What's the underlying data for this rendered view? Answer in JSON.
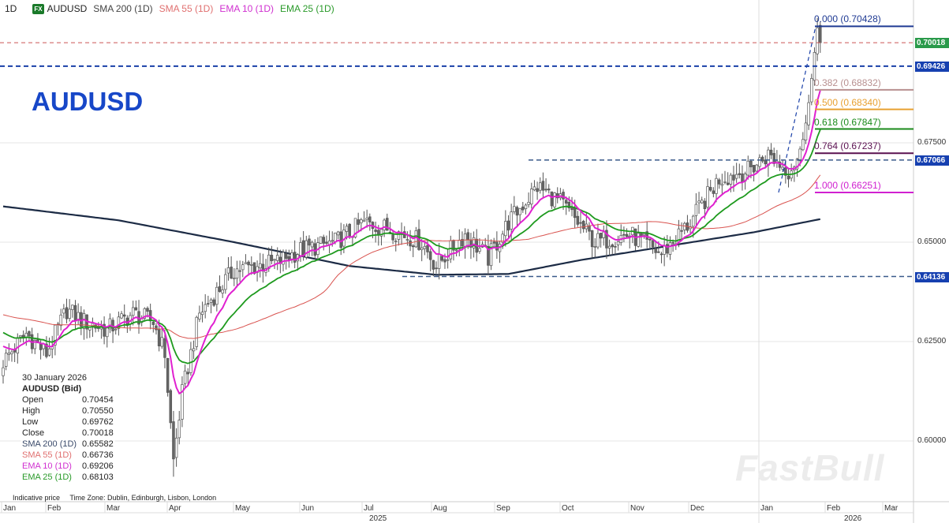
{
  "header": {
    "timeframe": "1D",
    "fx_badge": "FX",
    "symbol": "AUDUSD",
    "ind_sma200": "SMA 200 (1D)",
    "ind_sma55": "SMA 55 (1D)",
    "ind_ema10": "EMA 10 (1D)",
    "ind_ema25": "EMA 25 (1D)"
  },
  "title": "AUDUSD",
  "info": {
    "date": "30 January 2026",
    "instrument": "AUDUSD (Bid)",
    "rows": [
      {
        "k": "Open",
        "v": "0.70454"
      },
      {
        "k": "High",
        "v": "0.70550"
      },
      {
        "k": "Low",
        "v": "0.69762"
      },
      {
        "k": "Close",
        "v": "0.70018"
      },
      {
        "k": "SMA 200 (1D)",
        "v": "0.65582"
      },
      {
        "k": "SMA 55 (1D)",
        "v": "0.66736"
      },
      {
        "k": "EMA 10 (1D)",
        "v": "0.69206"
      },
      {
        "k": "EMA 25 (1D)",
        "v": "0.68103"
      }
    ]
  },
  "footer": {
    "indicative": "Indicative price",
    "timezone": "Time Zone: Dublin, Edinburgh, Lisbon, London"
  },
  "watermark": "FastBull",
  "colors": {
    "sma200": "#1c2b45",
    "sma55": "#d9534f",
    "ema10": "#e020d0",
    "ema25": "#1e9a1e",
    "candle": "#555555"
  },
  "chart_data": {
    "type": "candlestick",
    "title": "AUDUSD",
    "ylim": [
      0.585,
      0.712
    ],
    "y_ticks": [
      "0.60000",
      "0.62500",
      "0.65000",
      "0.67500"
    ],
    "x_ticks": [
      "Jan",
      "Feb",
      "Mar",
      "Apr",
      "May",
      "Jun",
      "Jul",
      "Aug",
      "Sep",
      "Oct",
      "Nov",
      "Dec",
      "Jan",
      "Feb",
      "Mar"
    ],
    "years": [
      "2025",
      "2026"
    ],
    "close_keypoints_day_price": [
      [
        0,
        0.62
      ],
      [
        8,
        0.627
      ],
      [
        15,
        0.622
      ],
      [
        22,
        0.633
      ],
      [
        28,
        0.63
      ],
      [
        36,
        0.628
      ],
      [
        45,
        0.632
      ],
      [
        52,
        0.63
      ],
      [
        56,
        0.622
      ],
      [
        59,
        0.595
      ],
      [
        62,
        0.612
      ],
      [
        68,
        0.632
      ],
      [
        80,
        0.643
      ],
      [
        95,
        0.645
      ],
      [
        103,
        0.648
      ],
      [
        115,
        0.65
      ],
      [
        125,
        0.655
      ],
      [
        135,
        0.653
      ],
      [
        145,
        0.65
      ],
      [
        150,
        0.644
      ],
      [
        160,
        0.652
      ],
      [
        168,
        0.646
      ],
      [
        175,
        0.655
      ],
      [
        185,
        0.664
      ],
      [
        193,
        0.66
      ],
      [
        205,
        0.65
      ],
      [
        217,
        0.652
      ],
      [
        228,
        0.647
      ],
      [
        238,
        0.655
      ],
      [
        248,
        0.666
      ],
      [
        258,
        0.668
      ],
      [
        265,
        0.672
      ],
      [
        272,
        0.668
      ],
      [
        276,
        0.672
      ],
      [
        279,
        0.685
      ],
      [
        281,
        0.697
      ],
      [
        282,
        0.704
      ],
      [
        283,
        0.7002
      ]
    ],
    "sma200_keypoints_day_price": [
      [
        0,
        0.659
      ],
      [
        40,
        0.6555
      ],
      [
        80,
        0.65
      ],
      [
        120,
        0.644
      ],
      [
        150,
        0.6418
      ],
      [
        175,
        0.642
      ],
      [
        200,
        0.6455
      ],
      [
        230,
        0.649
      ],
      [
        260,
        0.6525
      ],
      [
        283,
        0.6558
      ]
    ],
    "fib_levels": [
      {
        "label": "0.000 (0.70428)",
        "value": 0.70428,
        "color": "#1f3a93"
      },
      {
        "label": "0.382 (0.68832)",
        "value": 0.68832,
        "color": "#b89090"
      },
      {
        "label": "0.500 (0.68340)",
        "value": 0.6834,
        "color": "#e8a030"
      },
      {
        "label": "0.618 (0.67847)",
        "value": 0.67847,
        "color": "#1a8a1a"
      },
      {
        "label": "0.764 (0.67237)",
        "value": 0.67237,
        "color": "#5a1050"
      },
      {
        "label": "1.000 (0.66251)",
        "value": 0.66251,
        "color": "#d020d0"
      }
    ],
    "price_badges": [
      {
        "label": "0.70018",
        "value": 0.70018,
        "color": "#2a9a4a"
      },
      {
        "label": "0.69426",
        "value": 0.69426,
        "color": "#1640b0"
      },
      {
        "label": "0.67066",
        "value": 0.67066,
        "color": "#1640b0"
      },
      {
        "label": "0.64136",
        "value": 0.64136,
        "color": "#1640b0"
      }
    ]
  }
}
